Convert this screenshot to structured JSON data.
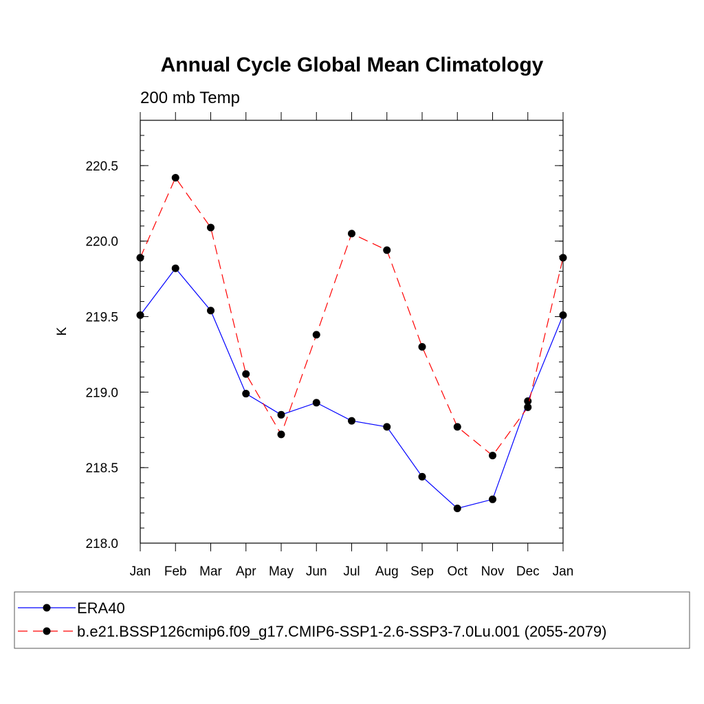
{
  "chart_data": {
    "type": "line",
    "title": "Annual Cycle Global Mean Climatology",
    "subtitle": "200 mb Temp",
    "xlabel": "",
    "ylabel": "K",
    "categories": [
      "Jan",
      "Feb",
      "Mar",
      "Apr",
      "May",
      "Jun",
      "Jul",
      "Aug",
      "Sep",
      "Oct",
      "Nov",
      "Dec",
      "Jan"
    ],
    "ylim": [
      218.0,
      220.8
    ],
    "yticks": [
      "218.0",
      "218.5",
      "219.0",
      "219.5",
      "220.0",
      "220.5"
    ],
    "grid": false,
    "legend_position": "bottom",
    "series": [
      {
        "name": "ERA40",
        "color": "#0000ff",
        "style": "solid",
        "marker": "filled-circle",
        "values": [
          219.51,
          219.82,
          219.54,
          218.99,
          218.85,
          218.93,
          218.81,
          218.77,
          218.44,
          218.23,
          218.29,
          218.94,
          219.51
        ]
      },
      {
        "name": "b.e21.BSSP126cmip6.f09_g17.CMIP6-SSP1-2.6-SSP3-7.0Lu.001 (2055-2079)",
        "color": "#ff0000",
        "style": "dashed",
        "marker": "filled-circle",
        "values": [
          219.89,
          220.42,
          220.09,
          219.12,
          218.72,
          219.38,
          220.05,
          219.94,
          219.3,
          218.77,
          218.58,
          218.9,
          219.89
        ]
      }
    ]
  }
}
